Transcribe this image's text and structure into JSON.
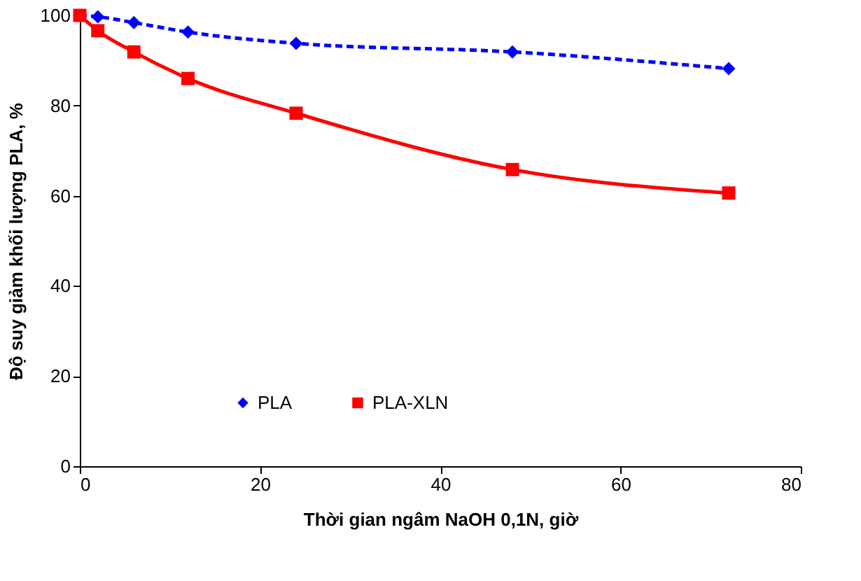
{
  "chart_data": {
    "type": "line",
    "xlabel": "Thời gian ngâm NaOH 0,1N, giờ",
    "ylabel": "Độ suy giảm khối lượng PLA, %",
    "xlim": [
      0,
      80
    ],
    "xticks": [
      0,
      20,
      40,
      60,
      80
    ],
    "ylim": [
      0,
      100
    ],
    "yticks": [
      0,
      20,
      40,
      60,
      80,
      100
    ],
    "grid": false,
    "legend": "bottom",
    "series": [
      {
        "name": "PLA",
        "color": "#0000ff",
        "marker": "diamond",
        "line_style": "dashed",
        "x": [
          0,
          2,
          6,
          12,
          24,
          48,
          72
        ],
        "values": [
          100,
          99.7,
          98.4,
          96.3,
          93.8,
          91.9,
          88.2
        ]
      },
      {
        "name": "PLA-XLN",
        "color": "#ff0000",
        "marker": "square",
        "line_style": "solid",
        "x": [
          0,
          2,
          6,
          12,
          24,
          48,
          72
        ],
        "values": [
          100,
          96.6,
          91.9,
          86,
          78.3,
          65.8,
          60.6
        ]
      }
    ]
  }
}
